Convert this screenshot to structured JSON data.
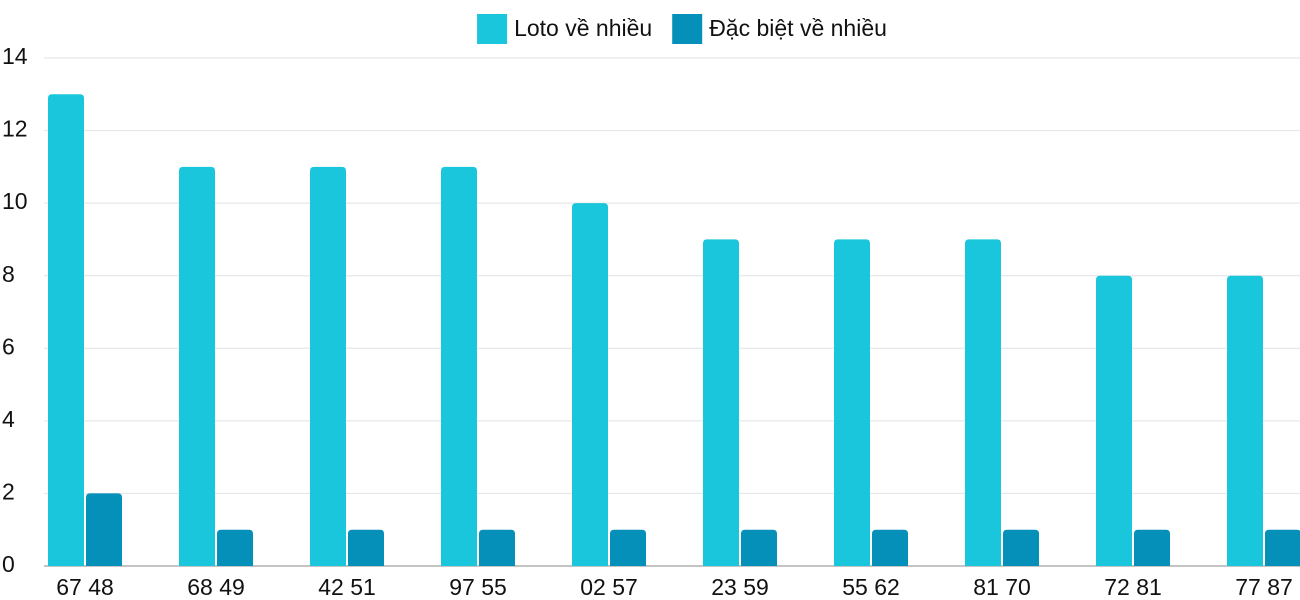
{
  "chart_data": {
    "type": "bar",
    "categories": [
      "67 48",
      "68 49",
      "42 51",
      "97 55",
      "02 57",
      "23 59",
      "55 62",
      "81 70",
      "72 81",
      "77 87"
    ],
    "series": [
      {
        "name": "Loto về nhiều",
        "color": "#1ac6dc",
        "values": [
          13,
          11,
          11,
          11,
          10,
          9,
          9,
          9,
          8,
          8
        ]
      },
      {
        "name": "Đặc biệt về nhiều",
        "color": "#0490b8",
        "values": [
          2,
          1,
          1,
          1,
          1,
          1,
          1,
          1,
          1,
          1
        ]
      }
    ],
    "ylim": [
      0,
      14
    ],
    "yticks": [
      0,
      2,
      4,
      6,
      8,
      10,
      12,
      14
    ],
    "grid": true,
    "legend": "top"
  }
}
